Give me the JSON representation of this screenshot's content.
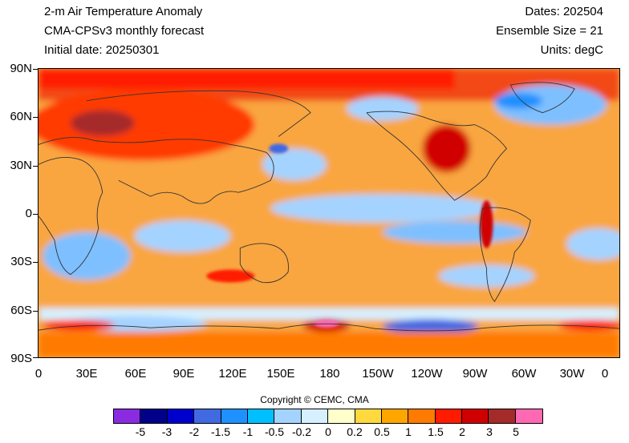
{
  "header": {
    "title": "2-m Air Temperature Anomaly",
    "model": "CMA-CPSv3 monthly forecast",
    "initial_date": "Initial date: 20250301",
    "dates": "Dates: 202504",
    "ensemble": "Ensemble Size = 21",
    "units": "Units: degC"
  },
  "axes": {
    "lat_labels": [
      "90N",
      "60N",
      "30N",
      "0",
      "30S",
      "60S",
      "90S"
    ],
    "lon_labels": [
      "0",
      "30E",
      "60E",
      "90E",
      "120E",
      "150E",
      "180",
      "150W",
      "120W",
      "90W",
      "60W",
      "30W",
      "0"
    ]
  },
  "copyright": "Copyright © CEMC, CMA",
  "colorbar": {
    "colors": [
      "#8a2be2",
      "#00008b",
      "#0000cd",
      "#4169e1",
      "#1e90ff",
      "#00bfff",
      "#a4d3ff",
      "#d6f0ff",
      "#ffffcc",
      "#ffd93d",
      "#ffa500",
      "#ff7a00",
      "#ff1a00",
      "#d10000",
      "#a52a2a",
      "#ff69b4"
    ],
    "labels": [
      "-5",
      "-3",
      "-2",
      "-1.5",
      "-1",
      "-0.5",
      "-0.2",
      "0",
      "0.2",
      "0.5",
      "1",
      "1.5",
      "2",
      "3",
      "5"
    ]
  }
}
